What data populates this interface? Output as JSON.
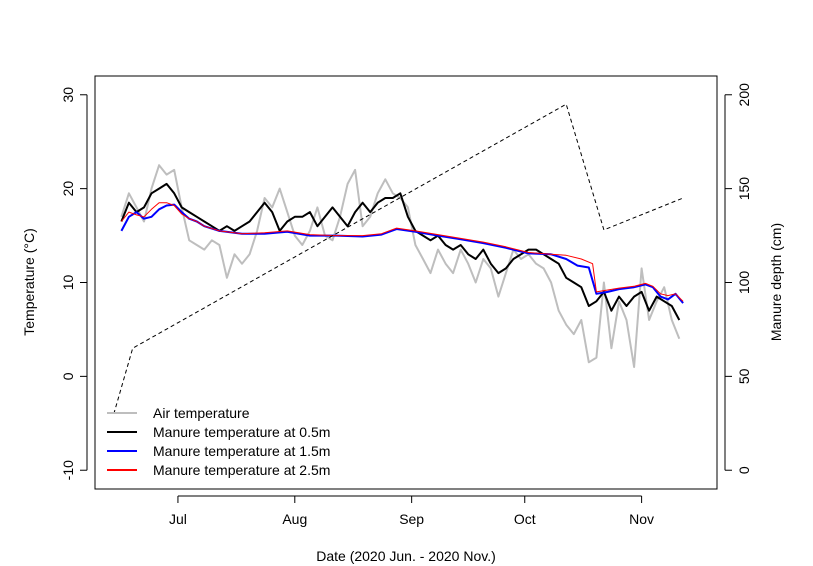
{
  "chart_data": {
    "type": "line",
    "xlabel": "Date (2020 Jun. - 2020 Nov.)",
    "ylabel_left": "Temperature (°C)",
    "ylabel_right": "Manure depth (cm)",
    "xlim": [
      "2020-06-09",
      "2020-11-21"
    ],
    "ylim_left": [
      -12,
      32
    ],
    "ylim_right": [
      -10,
      210
    ],
    "x_ticks": [
      {
        "label": "Jul",
        "date": "2020-07-01"
      },
      {
        "label": "Aug",
        "date": "2020-08-01"
      },
      {
        "label": "Sep",
        "date": "2020-09-01"
      },
      {
        "label": "Oct",
        "date": "2020-10-01"
      },
      {
        "label": "Nov",
        "date": "2020-11-01"
      }
    ],
    "y_ticks_left": [
      -10,
      0,
      10,
      20,
      30
    ],
    "y_ticks_right": [
      0,
      50,
      100,
      150,
      200
    ],
    "grid": false,
    "legend_position": "bottom-left",
    "series": [
      {
        "name": "Air temperature",
        "color": "#bebebe",
        "axis": "left",
        "points": [
          [
            "2020-06-16",
            17.0
          ],
          [
            "2020-06-18",
            19.5
          ],
          [
            "2020-06-20",
            18.0
          ],
          [
            "2020-06-22",
            16.5
          ],
          [
            "2020-06-24",
            20.0
          ],
          [
            "2020-06-26",
            22.5
          ],
          [
            "2020-06-28",
            21.5
          ],
          [
            "2020-06-30",
            22.0
          ],
          [
            "2020-07-02",
            18.0
          ],
          [
            "2020-07-04",
            14.5
          ],
          [
            "2020-07-06",
            14.0
          ],
          [
            "2020-07-08",
            13.5
          ],
          [
            "2020-07-10",
            14.5
          ],
          [
            "2020-07-12",
            14.0
          ],
          [
            "2020-07-14",
            10.5
          ],
          [
            "2020-07-16",
            13.0
          ],
          [
            "2020-07-18",
            12.0
          ],
          [
            "2020-07-20",
            13.0
          ],
          [
            "2020-07-22",
            15.5
          ],
          [
            "2020-07-24",
            19.0
          ],
          [
            "2020-07-26",
            18.0
          ],
          [
            "2020-07-28",
            20.0
          ],
          [
            "2020-07-30",
            17.5
          ],
          [
            "2020-08-01",
            15.0
          ],
          [
            "2020-08-03",
            14.0
          ],
          [
            "2020-08-05",
            15.5
          ],
          [
            "2020-08-07",
            18.0
          ],
          [
            "2020-08-09",
            15.0
          ],
          [
            "2020-08-11",
            14.5
          ],
          [
            "2020-08-13",
            17.0
          ],
          [
            "2020-08-15",
            20.5
          ],
          [
            "2020-08-17",
            22.0
          ],
          [
            "2020-08-19",
            16.0
          ],
          [
            "2020-08-21",
            17.0
          ],
          [
            "2020-08-23",
            19.5
          ],
          [
            "2020-08-25",
            21.0
          ],
          [
            "2020-08-27",
            19.5
          ],
          [
            "2020-08-29",
            19.0
          ],
          [
            "2020-08-31",
            18.0
          ],
          [
            "2020-09-02",
            14.0
          ],
          [
            "2020-09-04",
            12.5
          ],
          [
            "2020-09-06",
            11.0
          ],
          [
            "2020-09-08",
            13.5
          ],
          [
            "2020-09-10",
            12.0
          ],
          [
            "2020-09-12",
            11.0
          ],
          [
            "2020-09-14",
            13.5
          ],
          [
            "2020-09-16",
            12.0
          ],
          [
            "2020-09-18",
            10.0
          ],
          [
            "2020-09-20",
            12.5
          ],
          [
            "2020-09-22",
            11.5
          ],
          [
            "2020-09-24",
            8.5
          ],
          [
            "2020-09-26",
            11.0
          ],
          [
            "2020-09-28",
            13.5
          ],
          [
            "2020-09-30",
            12.5
          ],
          [
            "2020-10-02",
            13.0
          ],
          [
            "2020-10-04",
            12.0
          ],
          [
            "2020-10-06",
            11.5
          ],
          [
            "2020-10-08",
            10.0
          ],
          [
            "2020-10-10",
            7.0
          ],
          [
            "2020-10-12",
            5.5
          ],
          [
            "2020-10-14",
            4.5
          ],
          [
            "2020-10-16",
            6.0
          ],
          [
            "2020-10-18",
            1.5
          ],
          [
            "2020-10-20",
            2.0
          ],
          [
            "2020-10-22",
            10.0
          ],
          [
            "2020-10-24",
            3.0
          ],
          [
            "2020-10-26",
            8.0
          ],
          [
            "2020-10-28",
            6.0
          ],
          [
            "2020-10-30",
            1.0
          ],
          [
            "2020-11-01",
            11.5
          ],
          [
            "2020-11-03",
            6.0
          ],
          [
            "2020-11-05",
            8.0
          ],
          [
            "2020-11-07",
            9.5
          ],
          [
            "2020-11-09",
            6.0
          ],
          [
            "2020-11-11",
            4.0
          ]
        ]
      },
      {
        "name": "Manure temperature at 0.5m",
        "color": "#000000",
        "axis": "left",
        "points": [
          [
            "2020-06-16",
            16.5
          ],
          [
            "2020-06-18",
            18.5
          ],
          [
            "2020-06-20",
            17.5
          ],
          [
            "2020-06-22",
            18.0
          ],
          [
            "2020-06-24",
            19.5
          ],
          [
            "2020-06-26",
            20.0
          ],
          [
            "2020-06-28",
            20.5
          ],
          [
            "2020-06-30",
            19.5
          ],
          [
            "2020-07-02",
            18.0
          ],
          [
            "2020-07-04",
            17.5
          ],
          [
            "2020-07-06",
            17.0
          ],
          [
            "2020-07-08",
            16.5
          ],
          [
            "2020-07-10",
            16.0
          ],
          [
            "2020-07-12",
            15.5
          ],
          [
            "2020-07-14",
            16.0
          ],
          [
            "2020-07-16",
            15.5
          ],
          [
            "2020-07-18",
            16.0
          ],
          [
            "2020-07-20",
            16.5
          ],
          [
            "2020-07-22",
            17.5
          ],
          [
            "2020-07-24",
            18.5
          ],
          [
            "2020-07-26",
            17.5
          ],
          [
            "2020-07-28",
            15.5
          ],
          [
            "2020-07-30",
            16.5
          ],
          [
            "2020-08-01",
            17.0
          ],
          [
            "2020-08-03",
            17.0
          ],
          [
            "2020-08-05",
            17.5
          ],
          [
            "2020-08-07",
            16.0
          ],
          [
            "2020-08-09",
            17.0
          ],
          [
            "2020-08-11",
            18.0
          ],
          [
            "2020-08-13",
            17.0
          ],
          [
            "2020-08-15",
            16.0
          ],
          [
            "2020-08-17",
            17.5
          ],
          [
            "2020-08-19",
            18.5
          ],
          [
            "2020-08-21",
            17.5
          ],
          [
            "2020-08-23",
            18.5
          ],
          [
            "2020-08-25",
            19.0
          ],
          [
            "2020-08-27",
            19.0
          ],
          [
            "2020-08-29",
            19.5
          ],
          [
            "2020-08-31",
            17.0
          ],
          [
            "2020-09-02",
            15.5
          ],
          [
            "2020-09-04",
            15.0
          ],
          [
            "2020-09-06",
            14.5
          ],
          [
            "2020-09-08",
            15.0
          ],
          [
            "2020-09-10",
            14.0
          ],
          [
            "2020-09-12",
            13.5
          ],
          [
            "2020-09-14",
            14.0
          ],
          [
            "2020-09-16",
            13.0
          ],
          [
            "2020-09-18",
            12.5
          ],
          [
            "2020-09-20",
            13.5
          ],
          [
            "2020-09-22",
            12.0
          ],
          [
            "2020-09-24",
            11.0
          ],
          [
            "2020-09-26",
            11.5
          ],
          [
            "2020-09-28",
            12.5
          ],
          [
            "2020-09-30",
            13.0
          ],
          [
            "2020-10-02",
            13.5
          ],
          [
            "2020-10-04",
            13.5
          ],
          [
            "2020-10-06",
            13.0
          ],
          [
            "2020-10-08",
            12.5
          ],
          [
            "2020-10-10",
            12.0
          ],
          [
            "2020-10-12",
            10.5
          ],
          [
            "2020-10-14",
            10.0
          ],
          [
            "2020-10-16",
            9.5
          ],
          [
            "2020-10-18",
            7.5
          ],
          [
            "2020-10-20",
            8.0
          ],
          [
            "2020-10-22",
            9.0
          ],
          [
            "2020-10-24",
            7.0
          ],
          [
            "2020-10-26",
            8.5
          ],
          [
            "2020-10-28",
            7.5
          ],
          [
            "2020-10-30",
            8.5
          ],
          [
            "2020-11-01",
            9.0
          ],
          [
            "2020-11-03",
            7.0
          ],
          [
            "2020-11-05",
            8.5
          ],
          [
            "2020-11-07",
            8.0
          ],
          [
            "2020-11-09",
            7.5
          ],
          [
            "2020-11-11",
            6.0
          ]
        ]
      },
      {
        "name": "Manure temperature at 1.5m",
        "color": "#0000ff",
        "axis": "left",
        "points": [
          [
            "2020-06-16",
            15.5
          ],
          [
            "2020-06-18",
            17.0
          ],
          [
            "2020-06-20",
            17.5
          ],
          [
            "2020-06-22",
            16.8
          ],
          [
            "2020-06-24",
            17.0
          ],
          [
            "2020-06-26",
            17.8
          ],
          [
            "2020-06-28",
            18.2
          ],
          [
            "2020-06-30",
            18.3
          ],
          [
            "2020-07-02",
            17.5
          ],
          [
            "2020-07-04",
            16.8
          ],
          [
            "2020-07-06",
            16.5
          ],
          [
            "2020-07-08",
            16.0
          ],
          [
            "2020-07-12",
            15.5
          ],
          [
            "2020-07-18",
            15.2
          ],
          [
            "2020-07-24",
            15.2
          ],
          [
            "2020-07-30",
            15.4
          ],
          [
            "2020-08-05",
            15.0
          ],
          [
            "2020-08-12",
            15.0
          ],
          [
            "2020-08-19",
            14.9
          ],
          [
            "2020-08-24",
            15.1
          ],
          [
            "2020-08-28",
            15.7
          ],
          [
            "2020-09-02",
            15.4
          ],
          [
            "2020-09-08",
            15.0
          ],
          [
            "2020-09-14",
            14.6
          ],
          [
            "2020-09-20",
            14.2
          ],
          [
            "2020-09-26",
            13.7
          ],
          [
            "2020-10-02",
            13.1
          ],
          [
            "2020-10-08",
            13.0
          ],
          [
            "2020-10-12",
            12.5
          ],
          [
            "2020-10-15",
            11.8
          ],
          [
            "2020-10-18",
            11.6
          ],
          [
            "2020-10-20",
            8.8
          ],
          [
            "2020-10-23",
            9.0
          ],
          [
            "2020-10-26",
            9.3
          ],
          [
            "2020-10-30",
            9.5
          ],
          [
            "2020-11-02",
            9.8
          ],
          [
            "2020-11-04",
            9.5
          ],
          [
            "2020-11-06",
            8.5
          ],
          [
            "2020-11-08",
            8.2
          ],
          [
            "2020-11-10",
            8.8
          ],
          [
            "2020-11-12",
            7.8
          ]
        ]
      },
      {
        "name": "Manure temperature at 2.5m",
        "color": "#ff0000",
        "axis": "left",
        "points": [
          [
            "2020-06-16",
            16.5
          ],
          [
            "2020-06-18",
            17.5
          ],
          [
            "2020-06-20",
            17.2
          ],
          [
            "2020-06-22",
            17.0
          ],
          [
            "2020-06-24",
            17.8
          ],
          [
            "2020-06-26",
            18.5
          ],
          [
            "2020-06-28",
            18.5
          ],
          [
            "2020-06-30",
            18.2
          ],
          [
            "2020-07-02",
            17.3
          ],
          [
            "2020-07-04",
            16.8
          ],
          [
            "2020-07-06",
            16.5
          ],
          [
            "2020-07-08",
            16.0
          ],
          [
            "2020-07-12",
            15.5
          ],
          [
            "2020-07-18",
            15.2
          ],
          [
            "2020-07-24",
            15.3
          ],
          [
            "2020-07-30",
            15.5
          ],
          [
            "2020-08-05",
            15.1
          ],
          [
            "2020-08-12",
            15.0
          ],
          [
            "2020-08-19",
            15.0
          ],
          [
            "2020-08-24",
            15.2
          ],
          [
            "2020-08-28",
            15.8
          ],
          [
            "2020-09-02",
            15.5
          ],
          [
            "2020-09-08",
            15.1
          ],
          [
            "2020-09-14",
            14.7
          ],
          [
            "2020-09-20",
            14.3
          ],
          [
            "2020-09-26",
            13.8
          ],
          [
            "2020-10-02",
            13.2
          ],
          [
            "2020-10-08",
            13.0
          ],
          [
            "2020-10-12",
            12.9
          ],
          [
            "2020-10-16",
            12.5
          ],
          [
            "2020-10-19",
            12.0
          ],
          [
            "2020-10-20",
            9.0
          ],
          [
            "2020-10-23",
            9.2
          ],
          [
            "2020-10-26",
            9.4
          ],
          [
            "2020-10-30",
            9.6
          ],
          [
            "2020-11-02",
            9.9
          ],
          [
            "2020-11-04",
            9.6
          ],
          [
            "2020-11-06",
            8.8
          ],
          [
            "2020-11-08",
            8.6
          ],
          [
            "2020-11-10",
            8.8
          ],
          [
            "2020-11-12",
            8.0
          ]
        ]
      },
      {
        "name": "Manure depth",
        "color": "#000000",
        "dashed": true,
        "axis": "right",
        "points": [
          [
            "2020-06-14",
            30
          ],
          [
            "2020-06-19",
            65
          ],
          [
            "2020-10-12",
            195
          ],
          [
            "2020-10-22",
            128
          ],
          [
            "2020-11-12",
            145
          ]
        ]
      }
    ],
    "legend": [
      "Air temperature",
      "Manure temperature at 0.5m",
      "Manure temperature at 1.5m",
      "Manure temperature at 2.5m"
    ]
  }
}
